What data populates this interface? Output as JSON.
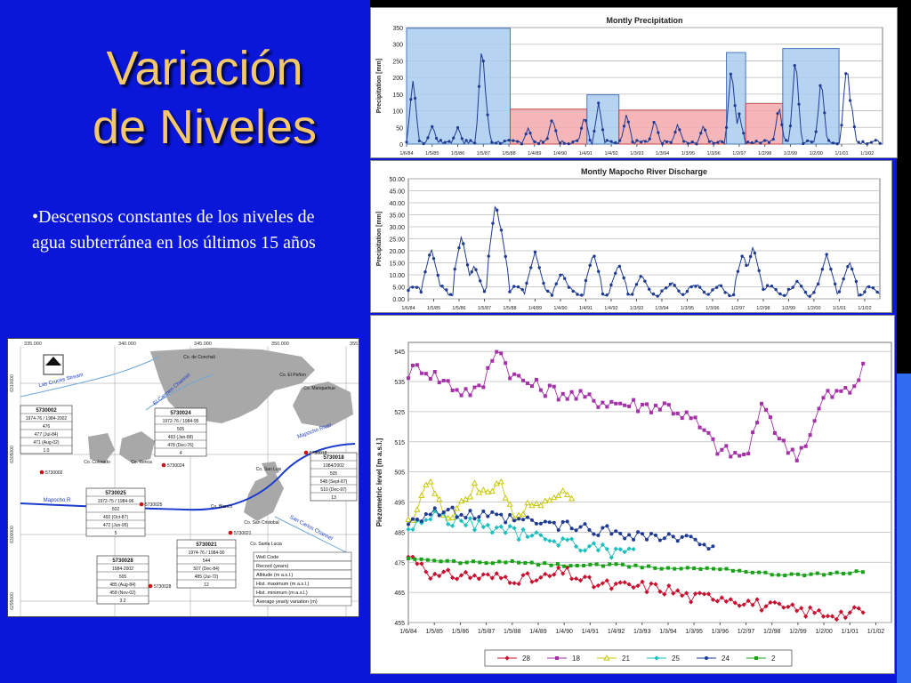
{
  "slide": {
    "title_line1": "Variación",
    "title_line2": "de Niveles",
    "bullet": "•Descensos constantes de los niveles de agua subterránea en los últimos 15 años"
  },
  "colors": {
    "background": "#0a16d8",
    "title": "#f4c86a",
    "series_blue": "#1f3a93",
    "wet": "#a9cbef",
    "dry": "#f2a9ad"
  },
  "chart_data": [
    {
      "type": "line",
      "title": "Montly Precipitation",
      "ylabel": "Precipitation [mm]",
      "ylim": [
        0,
        350
      ],
      "yticks": [
        "0",
        "50",
        "100",
        "150",
        "200",
        "250",
        "300",
        "350"
      ],
      "xticks": [
        "1/6/84",
        "1/5/85",
        "1/5/86",
        "1/5/87",
        "1/5/88",
        "1/4/89",
        "1/4/90",
        "1/4/91",
        "1/4/92",
        "1/3/93",
        "1/3/94",
        "1/3/95",
        "1/3/96",
        "1/2/97",
        "1/2/98",
        "1/2/99",
        "1/2/00",
        "1/1/01",
        "1/1/02"
      ],
      "periods": [
        {
          "kind": "wet",
          "start": 0,
          "end": 4.05,
          "value": 348
        },
        {
          "kind": "dry",
          "start": 4.05,
          "end": 7.05,
          "value": 105
        },
        {
          "kind": "wet",
          "start": 7.05,
          "end": 8.3,
          "value": 148
        },
        {
          "kind": "dry",
          "start": 8.3,
          "end": 12.5,
          "value": 102
        },
        {
          "kind": "wet",
          "start": 12.5,
          "end": 13.25,
          "value": 275
        },
        {
          "kind": "dry",
          "start": 13.25,
          "end": 14.7,
          "value": 122
        },
        {
          "kind": "wet",
          "start": 14.7,
          "end": 16.9,
          "value": 287
        }
      ],
      "peaks": [
        {
          "x": 0.25,
          "y": 220
        },
        {
          "x": 1.0,
          "y": 60
        },
        {
          "x": 2.0,
          "y": 55
        },
        {
          "x": 2.95,
          "y": 342
        },
        {
          "x": 3.05,
          "y": 180
        },
        {
          "x": 4.75,
          "y": 50
        },
        {
          "x": 5.7,
          "y": 90
        },
        {
          "x": 6.95,
          "y": 100
        },
        {
          "x": 7.5,
          "y": 135
        },
        {
          "x": 8.6,
          "y": 100
        },
        {
          "x": 9.7,
          "y": 78
        },
        {
          "x": 10.6,
          "y": 65
        },
        {
          "x": 11.6,
          "y": 60
        },
        {
          "x": 12.7,
          "y": 270
        },
        {
          "x": 13.0,
          "y": 100
        },
        {
          "x": 14.55,
          "y": 120
        },
        {
          "x": 15.2,
          "y": 285
        },
        {
          "x": 16.2,
          "y": 205
        },
        {
          "x": 17.2,
          "y": 285
        },
        {
          "x": 17.35,
          "y": 150
        }
      ]
    },
    {
      "type": "line",
      "title": "Montly Mapocho River Discharge",
      "ylabel": "Precipitation [mm]",
      "ylim": [
        0,
        50
      ],
      "yticks": [
        "0.00",
        "5.00",
        "10.00",
        "15.00",
        "20.00",
        "25.00",
        "30.00",
        "35.00",
        "40.00",
        "45.00",
        "50.00"
      ],
      "xticks": [
        "1/6/84",
        "1/5/85",
        "1/5/86",
        "1/5/87",
        "1/5/88",
        "1/4/89",
        "1/4/90",
        "1/4/91",
        "1/4/92",
        "1/3/93",
        "1/3/94",
        "1/3/95",
        "1/3/96",
        "1/2/97",
        "1/2/98",
        "1/2/99",
        "1/2/00",
        "1/1/01",
        "1/1/02"
      ],
      "peaks": [
        {
          "x": 0.9,
          "y": 21
        },
        {
          "x": 2.1,
          "y": 26.5
        },
        {
          "x": 2.6,
          "y": 14
        },
        {
          "x": 3.45,
          "y": 41
        },
        {
          "x": 3.6,
          "y": 33
        },
        {
          "x": 5.0,
          "y": 19.5
        },
        {
          "x": 6.05,
          "y": 11
        },
        {
          "x": 7.3,
          "y": 19
        },
        {
          "x": 8.3,
          "y": 14.5
        },
        {
          "x": 9.2,
          "y": 10
        },
        {
          "x": 10.4,
          "y": 7
        },
        {
          "x": 11.4,
          "y": 6
        },
        {
          "x": 13.2,
          "y": 19
        },
        {
          "x": 13.6,
          "y": 22
        },
        {
          "x": 15.35,
          "y": 7.5
        },
        {
          "x": 16.5,
          "y": 18.5
        },
        {
          "x": 17.4,
          "y": 15.5
        }
      ]
    },
    {
      "type": "line",
      "ylabel": "Piezometric level [m a.s.l.]",
      "ylim": [
        455,
        548
      ],
      "yticks": [
        "455",
        "465",
        "475",
        "485",
        "495",
        "505",
        "515",
        "525",
        "535",
        "545"
      ],
      "xticks": [
        "1/6/84",
        "1/5/85",
        "1/5/86",
        "1/5/87",
        "1/5/88",
        "1/4/89",
        "1/4/90",
        "1/4/91",
        "1/4/92",
        "1/3/93",
        "1/3/94",
        "1/3/95",
        "1/3/96",
        "1/2/97",
        "1/2/98",
        "1/2/99",
        "1/2/00",
        "1/1/01",
        "1/1/02"
      ],
      "series": [
        {
          "name": "28",
          "color": "#c8102e",
          "marker": "diamond",
          "anchors": [
            [
              0,
              477
            ],
            [
              0.5,
              475
            ],
            [
              1,
              470
            ],
            [
              2,
              471
            ],
            [
              3,
              470
            ],
            [
              4,
              470
            ],
            [
              5,
              469
            ],
            [
              6,
              472
            ],
            [
              7,
              468
            ],
            [
              8,
              467
            ],
            [
              9,
              467
            ],
            [
              10,
              466
            ],
            [
              11,
              463
            ],
            [
              12,
              464
            ],
            [
              13,
              462
            ],
            [
              14,
              460
            ],
            [
              15,
              459
            ],
            [
              16,
              458
            ],
            [
              17,
              458
            ],
            [
              17.6,
              459
            ]
          ]
        },
        {
          "name": "18",
          "color": "#a531a8",
          "marker": "square",
          "anchors": [
            [
              0,
              538
            ],
            [
              0.5,
              540
            ],
            [
              1,
              537
            ],
            [
              2,
              532
            ],
            [
              2.8,
              532
            ],
            [
              3.4,
              547
            ],
            [
              4,
              537
            ],
            [
              5,
              533
            ],
            [
              6,
              531
            ],
            [
              7,
              529
            ],
            [
              8,
              528
            ],
            [
              9,
              527
            ],
            [
              10,
              527
            ],
            [
              11,
              522
            ],
            [
              12,
              512
            ],
            [
              13,
              510
            ],
            [
              13.7,
              528
            ],
            [
              14.4,
              514
            ],
            [
              15,
              511
            ],
            [
              15.5,
              518
            ],
            [
              16,
              530
            ],
            [
              17,
              532
            ],
            [
              17.6,
              540
            ]
          ]
        },
        {
          "name": "21",
          "color": "#c8c80a",
          "marker": "triangle",
          "anchors": [
            [
              0,
              488
            ],
            [
              0.5,
              496
            ],
            [
              0.8,
              505
            ],
            [
              1,
              497
            ],
            [
              1.5,
              490
            ],
            [
              2,
              493
            ],
            [
              2.5,
              500
            ],
            [
              3,
              497
            ],
            [
              3.5,
              503
            ],
            [
              4,
              490
            ],
            [
              5,
              495
            ],
            [
              5.8,
              499
            ],
            [
              6.3,
              497
            ]
          ]
        },
        {
          "name": "25",
          "color": "#1abfbf",
          "marker": "diamond",
          "anchors": [
            [
              0,
              486
            ],
            [
              1,
              491
            ],
            [
              2,
              488
            ],
            [
              3,
              487
            ],
            [
              4,
              485
            ],
            [
              5,
              483
            ],
            [
              6,
              482
            ],
            [
              7,
              480
            ],
            [
              8,
              478
            ],
            [
              8.8,
              479
            ]
          ]
        },
        {
          "name": "24",
          "color": "#1f3a93",
          "marker": "circle",
          "anchors": [
            [
              0,
              489
            ],
            [
              1,
              492
            ],
            [
              2,
              491
            ],
            [
              3,
              490
            ],
            [
              4,
              489
            ],
            [
              5,
              488
            ],
            [
              6,
              487
            ],
            [
              7,
              486
            ],
            [
              8,
              485
            ],
            [
              9,
              484
            ],
            [
              10,
              483
            ],
            [
              11,
              482
            ],
            [
              11.8,
              481
            ]
          ]
        },
        {
          "name": "2",
          "color": "#18a218",
          "marker": "square",
          "anchors": [
            [
              0,
              476
            ],
            [
              2,
              475
            ],
            [
              4,
              475
            ],
            [
              6,
              474
            ],
            [
              8,
              474
            ],
            [
              10,
              473
            ],
            [
              12,
              473
            ],
            [
              14,
              471
            ],
            [
              16,
              471
            ],
            [
              17.6,
              472
            ]
          ]
        }
      ],
      "legend_position": "bottom"
    }
  ],
  "map": {
    "xticks": [
      "335.000",
      "340.000",
      "345.000",
      "350.000",
      "355.000"
    ],
    "yticks": [
      "6310000",
      "6305000",
      "6300000",
      "6295000"
    ],
    "north": "N",
    "rivers": [
      "Las Cruces Stream",
      "El Carmen Channel",
      "Mapocho River",
      "San Carlos Channel",
      "Mapocho R"
    ],
    "hills": [
      "Co. de Conchali",
      "Co. El Peñon",
      "Co. Manquehue",
      "Co. Colorado",
      "Co. Renca",
      "Co. San Luis",
      "Co. Blanco",
      "Co. San Cristobal",
      "Co. Santa Lucia"
    ],
    "wells": [
      {
        "id": "5730002",
        "lines": [
          "1974-76 / 1984-2002",
          "476",
          "477 (Jul-84)",
          "471 (Aug-02)",
          "1.0"
        ]
      },
      {
        "id": "5730024",
        "lines": [
          "1972-76 / 1984-95",
          "505",
          "493 (Jan-88)",
          "478 (Dec-76)",
          "4"
        ]
      },
      {
        "id": "5730018",
        "lines": [
          "1984/2002",
          "505",
          "548 (Sept-87)",
          "510 (Dec-97)",
          "13"
        ]
      },
      {
        "id": "5730025",
        "lines": [
          "1972-75 / 1984-96",
          "502",
          "492 (Oct-87)",
          "472 (Jun-95)",
          "5"
        ]
      },
      {
        "id": "5730021",
        "lines": [
          "1974-76 / 1984-90",
          "544",
          "507 (Dec-84)",
          "485 (Jul-72)",
          "12"
        ]
      },
      {
        "id": "5730028",
        "lines": [
          "1984-2002",
          "505",
          "485 (Aug-84)",
          "458 (Nov-02)",
          "3.2"
        ]
      }
    ],
    "well_points": [
      "5730002",
      "5730024",
      "5730018",
      "5730025",
      "5730021",
      "5730028"
    ],
    "well_code_legend": [
      "Well Code",
      "Record (years)",
      "Altitude (m a.s.l.)",
      "Hist. maximum (m a.s.l.)",
      "Hist. minimum (m a.s.l.)",
      "Average yearly variation (m)"
    ]
  }
}
